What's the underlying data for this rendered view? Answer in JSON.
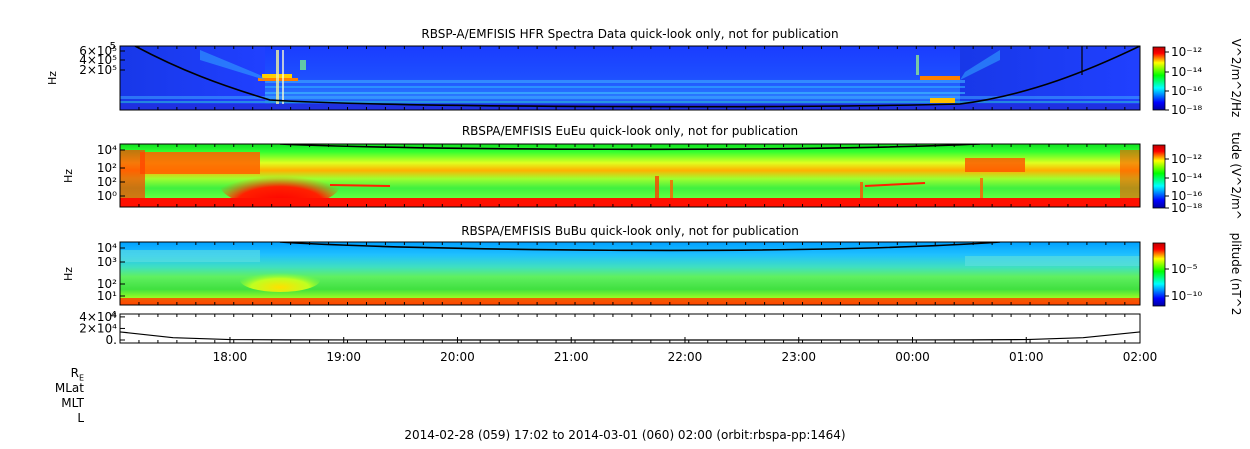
{
  "chart_data": [
    {
      "type": "heatmap",
      "title": "RBSP-A/EMFISIS  HFR Spectra Data quick-look only, not for publication",
      "ylabel": "Hz",
      "yticks": [
        "2×10⁵",
        "4×10⁵",
        "6×10⁵"
      ],
      "ytick_values": [
        200000,
        400000,
        600000
      ],
      "ytop_label": "5",
      "colorbar_label": "V^2/m^2/Hz",
      "colorbar_ticks": [
        "10⁻¹²",
        "10⁻¹⁴",
        "10⁻¹⁶",
        "10⁻¹⁸"
      ],
      "colorbar_range": [
        1e-18,
        1e-11
      ]
    },
    {
      "type": "heatmap",
      "title": "RBSPA/EMFISIS  EuEu quick-look only, not for publication",
      "ylabel": "Hz",
      "yticks": [
        "10⁰",
        "10²",
        "10²",
        "10⁴"
      ],
      "ytick_values": [
        1,
        100,
        100,
        10000
      ],
      "colorbar_label": "tude (V^2/m^",
      "colorbar_ticks": [
        "10⁻¹²",
        "10⁻¹⁴",
        "10⁻¹⁶",
        "10⁻¹⁸"
      ],
      "colorbar_range": [
        1e-18,
        1e-11
      ]
    },
    {
      "type": "heatmap",
      "title": "RBSPA/EMFISIS  BuBu quick-look only, not for publication",
      "ylabel": "Hz",
      "yticks": [
        "10¹",
        "10²",
        "10³",
        "10⁴"
      ],
      "ytick_values": [
        10,
        100,
        1000,
        10000
      ],
      "colorbar_label": "plitude (nT^2",
      "colorbar_ticks": [
        "10⁻⁵",
        "10⁻¹⁰"
      ],
      "colorbar_range": [
        1e-12,
        0.001
      ]
    },
    {
      "type": "line",
      "yticks": [
        "0.",
        "2×10⁴",
        "4×10⁴"
      ],
      "ytick_values": [
        0,
        20000,
        40000
      ],
      "x": [
        "17:02",
        "17:30",
        "18:00",
        "18:30",
        "19:00",
        "20:00",
        "21:00",
        "22:00",
        "23:00",
        "00:00",
        "00:30",
        "01:00",
        "01:30",
        "02:00"
      ],
      "values": [
        14000,
        4000,
        800,
        200,
        100,
        50,
        40,
        40,
        50,
        100,
        200,
        800,
        4000,
        14000
      ],
      "xticks": [
        "18:00",
        "19:00",
        "20:00",
        "21:00",
        "22:00",
        "23:00",
        "00:00",
        "01:00",
        "02:00"
      ]
    }
  ],
  "ephemeris_labels": [
    "R",
    "MLat",
    "MLT",
    "L"
  ],
  "ephemeris_r_sub": "E",
  "footer": "2014-02-28 (059) 17:02 to 2014-03-01 (060) 02:00 (orbit:rbspa-pp:1464)"
}
